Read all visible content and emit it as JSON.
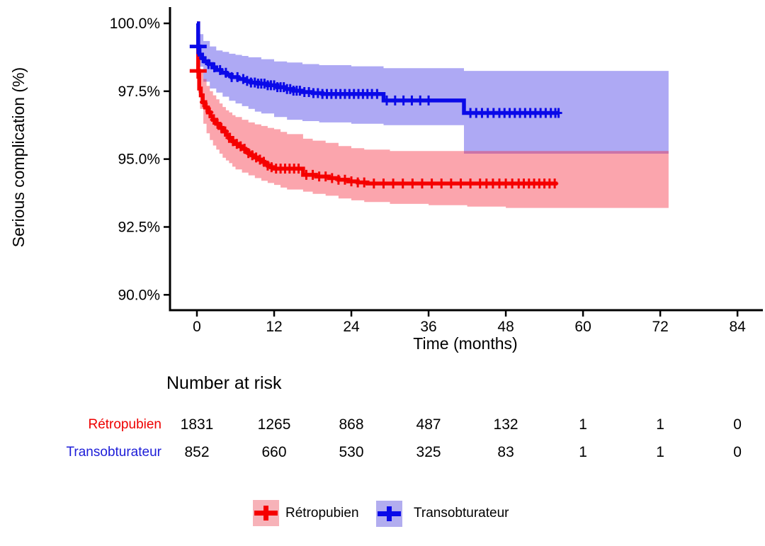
{
  "chart_data": {
    "type": "line",
    "subtype": "kaplan-meier-step",
    "title": "",
    "ylabel": "Serious complication (%)",
    "xlabel": "Time (months)",
    "x_ticks": [
      0,
      12,
      24,
      36,
      48,
      60,
      72,
      84
    ],
    "y_ticks": [
      {
        "v": 100.0,
        "label": "100.0%"
      },
      {
        "v": 97.5,
        "label": "97.5%"
      },
      {
        "v": 95.0,
        "label": "95.0%"
      },
      {
        "v": 92.5,
        "label": "92.5%"
      },
      {
        "v": 90.0,
        "label": "90.0%"
      }
    ],
    "xlim": [
      -4,
      88
    ],
    "ylim": [
      90,
      100
    ],
    "grid": false,
    "legend_position": "bottom",
    "series": [
      {
        "name": "Rétropubien",
        "line_color": "#f50000",
        "band_color": "rgba(246,40,60,0.42)",
        "key_bg": "#f7b2b8",
        "label_color": "#ee0000",
        "end": 56.0,
        "band_end": 73.3,
        "start_marker": [
          0.2,
          98.25
        ],
        "steps": [
          [
            0,
            100
          ],
          [
            0.2,
            98.25
          ],
          [
            0.35,
            97.6
          ],
          [
            0.6,
            97.35
          ],
          [
            0.9,
            97.1
          ],
          [
            1.3,
            96.9
          ],
          [
            1.7,
            96.72
          ],
          [
            2.1,
            96.58
          ],
          [
            2.5,
            96.45
          ],
          [
            3,
            96.3
          ],
          [
            3.5,
            96.15
          ],
          [
            4,
            96.02
          ],
          [
            4.5,
            95.9
          ],
          [
            5,
            95.78
          ],
          [
            5.5,
            95.66
          ],
          [
            6,
            95.56
          ],
          [
            6.5,
            95.47
          ],
          [
            7,
            95.38
          ],
          [
            7.5,
            95.3
          ],
          [
            8,
            95.22
          ],
          [
            8.5,
            95.14
          ],
          [
            9,
            95.06
          ],
          [
            9.5,
            94.98
          ],
          [
            10,
            94.9
          ],
          [
            10.5,
            94.83
          ],
          [
            11,
            94.76
          ],
          [
            11.5,
            94.7
          ],
          [
            12,
            94.65
          ],
          [
            16.5,
            94.42
          ],
          [
            18.5,
            94.36
          ],
          [
            20.5,
            94.3
          ],
          [
            22,
            94.24
          ],
          [
            23.5,
            94.18
          ],
          [
            25,
            94.14
          ],
          [
            26.5,
            94.1
          ]
        ],
        "upper": [
          [
            0.2,
            98.85
          ],
          [
            0.5,
            98.3
          ],
          [
            1,
            97.95
          ],
          [
            1.5,
            97.7
          ],
          [
            2,
            97.5
          ],
          [
            2.5,
            97.35
          ],
          [
            3,
            97.2
          ],
          [
            3.5,
            97.05
          ],
          [
            4,
            96.92
          ],
          [
            4.5,
            96.8
          ],
          [
            5,
            96.72
          ],
          [
            5.5,
            96.62
          ],
          [
            6,
            96.55
          ],
          [
            7,
            96.45
          ],
          [
            8,
            96.35
          ],
          [
            9,
            96.28
          ],
          [
            10,
            96.22
          ],
          [
            11,
            96.15
          ],
          [
            12,
            96.1
          ],
          [
            13,
            96.0
          ],
          [
            14,
            95.92
          ],
          [
            16.5,
            95.75
          ],
          [
            18,
            95.68
          ],
          [
            20,
            95.6
          ],
          [
            22,
            95.48
          ],
          [
            24,
            95.4
          ],
          [
            26,
            95.35
          ],
          [
            30,
            95.3
          ]
        ],
        "lower": [
          [
            0.2,
            97.45
          ],
          [
            0.5,
            96.85
          ],
          [
            1,
            96.3
          ],
          [
            1.5,
            95.95
          ],
          [
            2,
            95.7
          ],
          [
            2.5,
            95.5
          ],
          [
            3,
            95.35
          ],
          [
            3.5,
            95.2
          ],
          [
            4,
            95.05
          ],
          [
            4.5,
            94.95
          ],
          [
            5,
            94.85
          ],
          [
            5.5,
            94.72
          ],
          [
            6,
            94.62
          ],
          [
            7,
            94.5
          ],
          [
            8,
            94.4
          ],
          [
            9,
            94.3
          ],
          [
            10,
            94.2
          ],
          [
            11,
            94.12
          ],
          [
            12,
            94.05
          ],
          [
            13,
            93.95
          ],
          [
            14,
            93.88
          ],
          [
            16.5,
            93.8
          ],
          [
            18,
            93.72
          ],
          [
            20,
            93.65
          ],
          [
            22,
            93.55
          ],
          [
            24,
            93.48
          ],
          [
            26,
            93.42
          ],
          [
            30,
            93.35
          ],
          [
            36,
            93.3
          ],
          [
            42,
            93.25
          ],
          [
            48,
            93.2
          ]
        ],
        "censors": [
          1,
          1.5,
          2,
          2.6,
          3.2,
          3.8,
          4.4,
          5,
          5.6,
          6.2,
          6.8,
          7.4,
          8,
          8.6,
          9.2,
          9.8,
          10.4,
          11,
          11.6,
          12.3,
          13,
          13.7,
          14.4,
          15.1,
          15.8,
          17,
          18,
          19,
          20,
          21,
          22,
          23,
          24,
          25,
          26,
          27.5,
          29,
          30.5,
          32,
          33.5,
          35,
          36.5,
          38,
          39.5,
          41,
          42.5,
          44,
          45,
          46,
          47,
          48,
          49,
          50,
          50.8,
          51.6,
          52.4,
          53.2,
          54,
          54.8,
          55.6
        ]
      },
      {
        "name": "Transobturateur",
        "line_color": "#0a0ae8",
        "band_color": "rgba(70,60,230,0.44)",
        "key_bg": "#b2adef",
        "label_color": "#1d1dd8",
        "end": 56.2,
        "band_end": 73.3,
        "start_marker": [
          0.2,
          99.15
        ],
        "steps": [
          [
            0,
            100
          ],
          [
            0.2,
            99.15
          ],
          [
            0.4,
            98.85
          ],
          [
            0.8,
            98.72
          ],
          [
            1.2,
            98.6
          ],
          [
            1.8,
            98.5
          ],
          [
            2.4,
            98.38
          ],
          [
            3,
            98.28
          ],
          [
            3.8,
            98.18
          ],
          [
            4.6,
            98.1
          ],
          [
            5.4,
            98.02
          ],
          [
            6.4,
            97.95
          ],
          [
            7.4,
            97.88
          ],
          [
            8.4,
            97.82
          ],
          [
            9.5,
            97.78
          ],
          [
            11,
            97.72
          ],
          [
            12.5,
            97.65
          ],
          [
            13.8,
            97.58
          ],
          [
            15,
            97.52
          ],
          [
            16.4,
            97.47
          ],
          [
            18,
            97.43
          ],
          [
            19.5,
            97.4
          ],
          [
            29,
            97.16
          ],
          [
            41.5,
            96.7
          ]
        ],
        "upper": [
          [
            0.2,
            99.6
          ],
          [
            1,
            99.35
          ],
          [
            2,
            99.15
          ],
          [
            3,
            99.0
          ],
          [
            4,
            98.95
          ],
          [
            5,
            98.88
          ],
          [
            6,
            98.84
          ],
          [
            7,
            98.8
          ],
          [
            8,
            98.75
          ],
          [
            10,
            98.68
          ],
          [
            12,
            98.6
          ],
          [
            14,
            98.56
          ],
          [
            16.4,
            98.5
          ],
          [
            19,
            98.46
          ],
          [
            24,
            98.42
          ],
          [
            29,
            98.35
          ],
          [
            41.5,
            98.25
          ]
        ],
        "lower": [
          [
            0.2,
            98.4
          ],
          [
            1,
            97.85
          ],
          [
            2,
            97.6
          ],
          [
            3,
            97.45
          ],
          [
            4,
            97.3
          ],
          [
            5,
            97.15
          ],
          [
            6,
            97.05
          ],
          [
            7,
            96.95
          ],
          [
            8,
            96.85
          ],
          [
            9,
            96.75
          ],
          [
            10,
            96.68
          ],
          [
            12,
            96.55
          ],
          [
            14,
            96.45
          ],
          [
            16.4,
            96.4
          ],
          [
            19,
            96.35
          ],
          [
            24,
            96.3
          ],
          [
            29,
            96.25
          ],
          [
            41.5,
            95.2
          ]
        ],
        "censors": [
          0.9,
          1.8,
          2.7,
          3.6,
          4.5,
          5.4,
          6.3,
          7.2,
          7.8,
          8.4,
          9,
          9.5,
          10,
          10.5,
          11,
          11.5,
          12,
          12.5,
          13,
          13.5,
          14,
          14.5,
          15,
          15.5,
          16,
          16.7,
          17.4,
          18.1,
          18.8,
          19.5,
          20.2,
          20.9,
          21.6,
          22.3,
          23,
          23.7,
          24.4,
          25.1,
          25.8,
          26.5,
          27.2,
          28,
          29.5,
          30.8,
          32.1,
          33.4,
          34.7,
          36,
          42.5,
          43.4,
          44.3,
          45.2,
          46.1,
          47,
          47.8,
          48.6,
          49.4,
          50.2,
          51,
          51.8,
          52.6,
          53.4,
          54.2,
          55,
          55.7,
          56.2
        ]
      }
    ],
    "risk_table": {
      "title": "Number at risk",
      "times": [
        0,
        12,
        24,
        36,
        48,
        60,
        72,
        84
      ],
      "rows": [
        {
          "label": "Rétropubien",
          "values": [
            "1831",
            "1265",
            "868",
            "487",
            "132",
            "1",
            "1",
            "0"
          ]
        },
        {
          "label": "Transobturateur",
          "values": [
            "852",
            "660",
            "530",
            "325",
            "83",
            "1",
            "1",
            "0"
          ]
        }
      ]
    }
  },
  "colors": {
    "axis": "#000000",
    "text": "#000000",
    "red_line": "#f50000",
    "blue_line": "#0a0ae8",
    "red_band": "rgba(246,40,60,0.42)",
    "blue_band": "rgba(70,60,230,0.44)"
  }
}
